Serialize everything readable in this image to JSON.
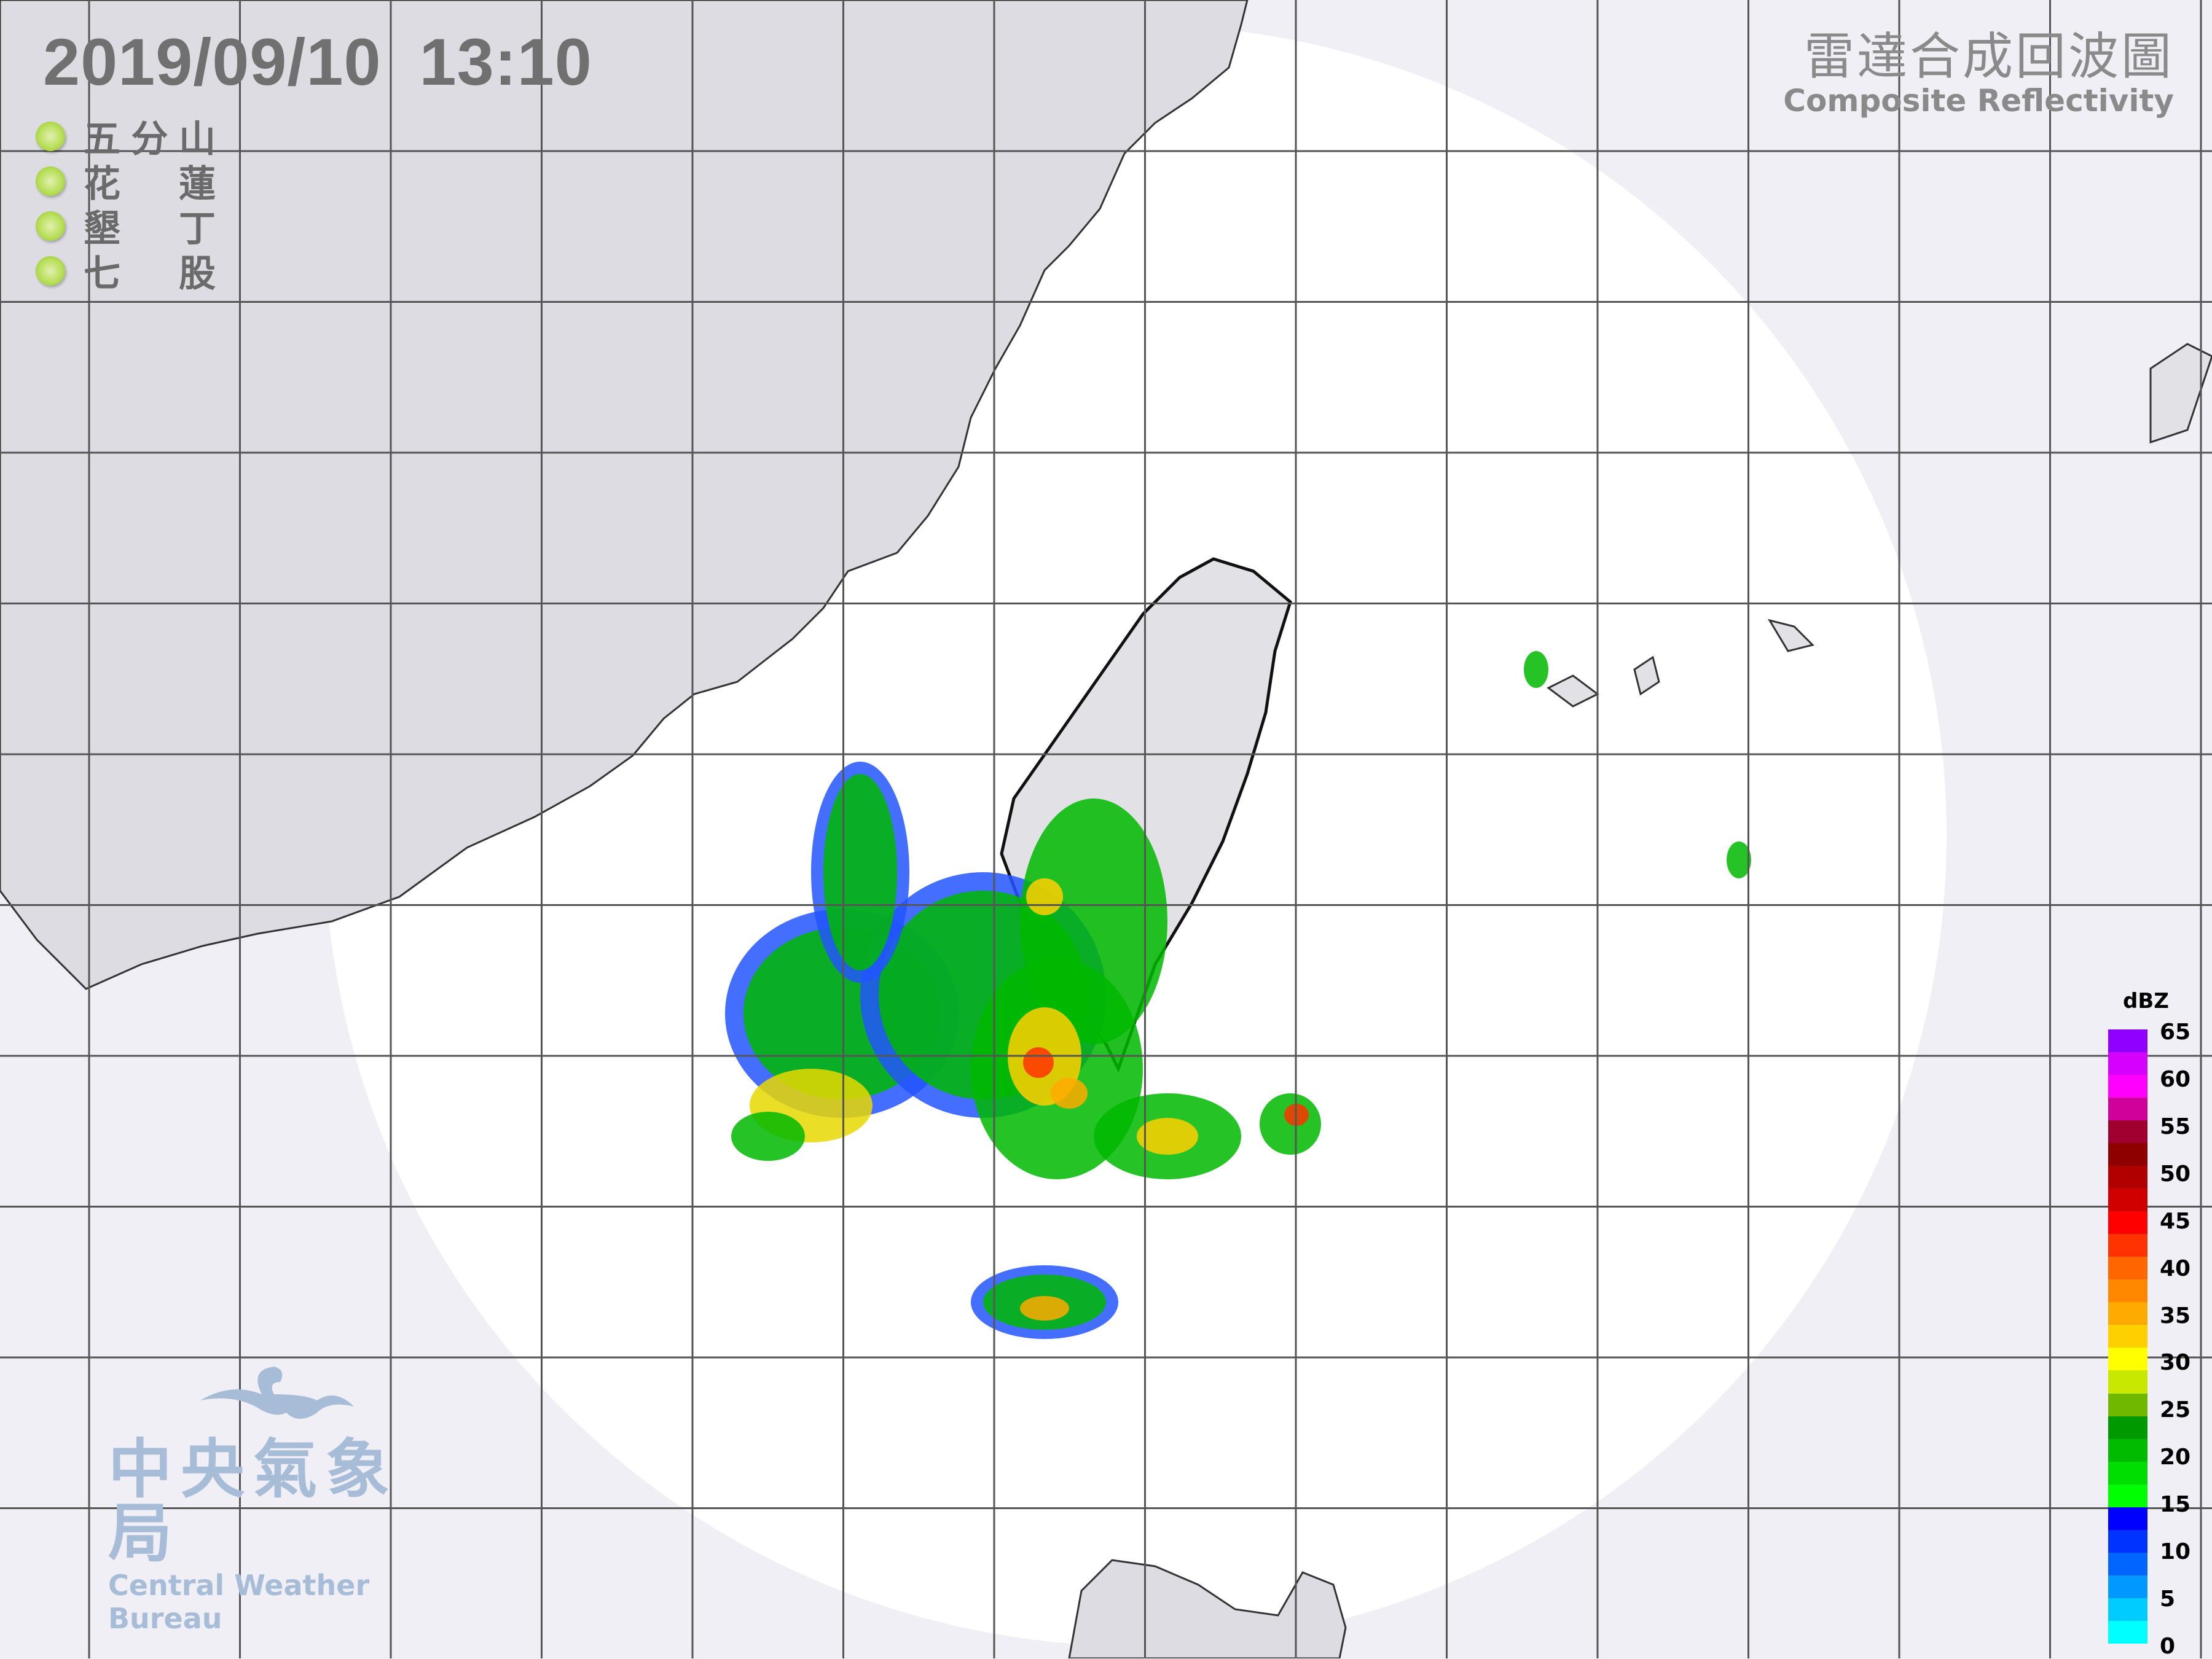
{
  "header": {
    "date": "2019/09/10",
    "time": "13:10"
  },
  "stations": [
    {
      "chars": [
        "五",
        "分",
        "山"
      ],
      "status_color": "#9acd32"
    },
    {
      "chars": [
        "花",
        "蓮"
      ],
      "status_color": "#9acd32"
    },
    {
      "chars": [
        "墾",
        "丁"
      ],
      "status_color": "#9acd32"
    },
    {
      "chars": [
        "七",
        "股"
      ],
      "status_color": "#9acd32"
    }
  ],
  "product": {
    "title_zh": "雷達合成回波圖",
    "title_en": "Composite Reflectivity"
  },
  "logo": {
    "name_zh": "中央氣象局",
    "name_en": "Central Weather Bureau"
  },
  "legend": {
    "unit": "dBZ",
    "ticks": [
      "65",
      "60",
      "55",
      "50",
      "45",
      "40",
      "35",
      "30",
      "25",
      "20",
      "15",
      "10",
      "5",
      "0"
    ],
    "colors": [
      "#8f00ff",
      "#d600ff",
      "#ff00ff",
      "#d0009a",
      "#a00030",
      "#8e0000",
      "#b00000",
      "#d00000",
      "#ff0000",
      "#ff3300",
      "#ff6600",
      "#ff8800",
      "#ffaa00",
      "#ffd000",
      "#ffff00",
      "#c8e800",
      "#70b800",
      "#009900",
      "#00bb00",
      "#00dd00",
      "#00ff00",
      "#0000ff",
      "#0033ff",
      "#0066ff",
      "#0099ff",
      "#00ccff",
      "#00ffff"
    ]
  },
  "map": {
    "land_color": "#dcdce2",
    "coverage_color": "#ffffff",
    "outside_color": "#efeff5",
    "grid_color": "#555555"
  }
}
